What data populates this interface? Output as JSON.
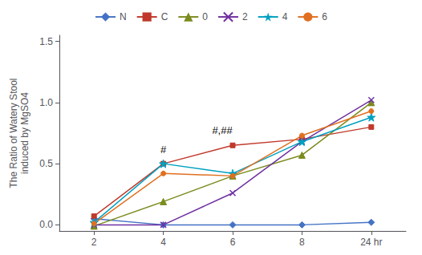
{
  "chart_data": {
    "type": "line",
    "categories": [
      "2",
      "4",
      "6",
      "8",
      "24 hr"
    ],
    "series": [
      {
        "name": "N",
        "color": "#4472C4",
        "marker": "diamond",
        "values": [
          0.05,
          0.0,
          0.0,
          0.0,
          0.02
        ]
      },
      {
        "name": "C",
        "color": "#C0392B",
        "marker": "square",
        "values": [
          0.07,
          0.5,
          0.65,
          0.7,
          0.8
        ]
      },
      {
        "name": "0",
        "color": "#7B8B1E",
        "marker": "triangle",
        "values": [
          -0.01,
          0.19,
          0.4,
          0.57,
          1.0
        ]
      },
      {
        "name": "2",
        "color": "#7030A0",
        "marker": "x",
        "values": [
          0.0,
          0.0,
          0.26,
          0.68,
          1.02
        ]
      },
      {
        "name": "4",
        "color": "#00A0C0",
        "marker": "star",
        "values": [
          0.02,
          0.5,
          0.42,
          0.68,
          0.88
        ]
      },
      {
        "name": "6",
        "color": "#E07020",
        "marker": "circle",
        "values": [
          0.01,
          0.42,
          0.4,
          0.73,
          0.93
        ]
      }
    ],
    "ylabel": "The Ratio of Watery Stool\ninduced by MgSO4",
    "ylim": [
      -0.05,
      1.55
    ],
    "yticks": [
      {
        "value": 0,
        "label": "0.0"
      },
      0.5,
      {
        "value": 1,
        "label": "1.0"
      },
      1.5
    ],
    "annotations": [
      {
        "text": "#",
        "x": 1.0,
        "y": 0.57
      },
      {
        "text": "#,##",
        "x": 1.85,
        "y": 0.73
      }
    ],
    "grid": false,
    "legend": "top"
  }
}
